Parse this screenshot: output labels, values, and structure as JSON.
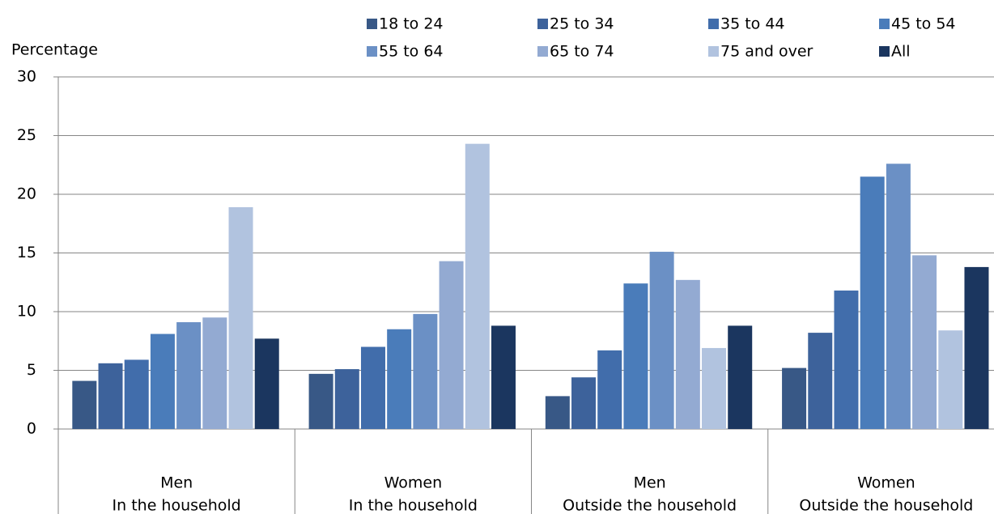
{
  "chart_data": {
    "type": "bar",
    "y_label": "Percentage",
    "categories": [
      "Men",
      "Women",
      "Men",
      "Women"
    ],
    "category_groups": [
      "In the household",
      "In the household",
      "Outside the household",
      "Outside the household"
    ],
    "series": [
      {
        "name": "18 to 24",
        "color": "#385886",
        "values": [
          4.1,
          4.7,
          2.8,
          5.2
        ]
      },
      {
        "name": "25 to 34",
        "color": "#3d629b",
        "values": [
          5.6,
          5.1,
          4.4,
          8.2
        ]
      },
      {
        "name": "35 to 44",
        "color": "#416dab",
        "values": [
          5.9,
          7.0,
          6.7,
          11.8
        ]
      },
      {
        "name": "45 to 54",
        "color": "#4a7cba",
        "values": [
          8.1,
          8.5,
          12.4,
          21.5
        ]
      },
      {
        "name": "55 to 64",
        "color": "#6b90c5",
        "values": [
          9.1,
          9.8,
          15.1,
          22.6
        ]
      },
      {
        "name": "65 to 74",
        "color": "#93aad2",
        "values": [
          9.5,
          14.3,
          12.7,
          14.8
        ]
      },
      {
        "name": "75 and over",
        "color": "#b1c3df",
        "values": [
          18.9,
          24.3,
          6.9,
          8.4
        ]
      },
      {
        "name": "All",
        "color": "#1b365f",
        "values": [
          7.7,
          8.8,
          8.8,
          13.8
        ]
      }
    ],
    "ylim": [
      0,
      30
    ],
    "yticks": [
      0,
      5,
      10,
      15,
      20,
      25,
      30
    ],
    "grid": true
  }
}
